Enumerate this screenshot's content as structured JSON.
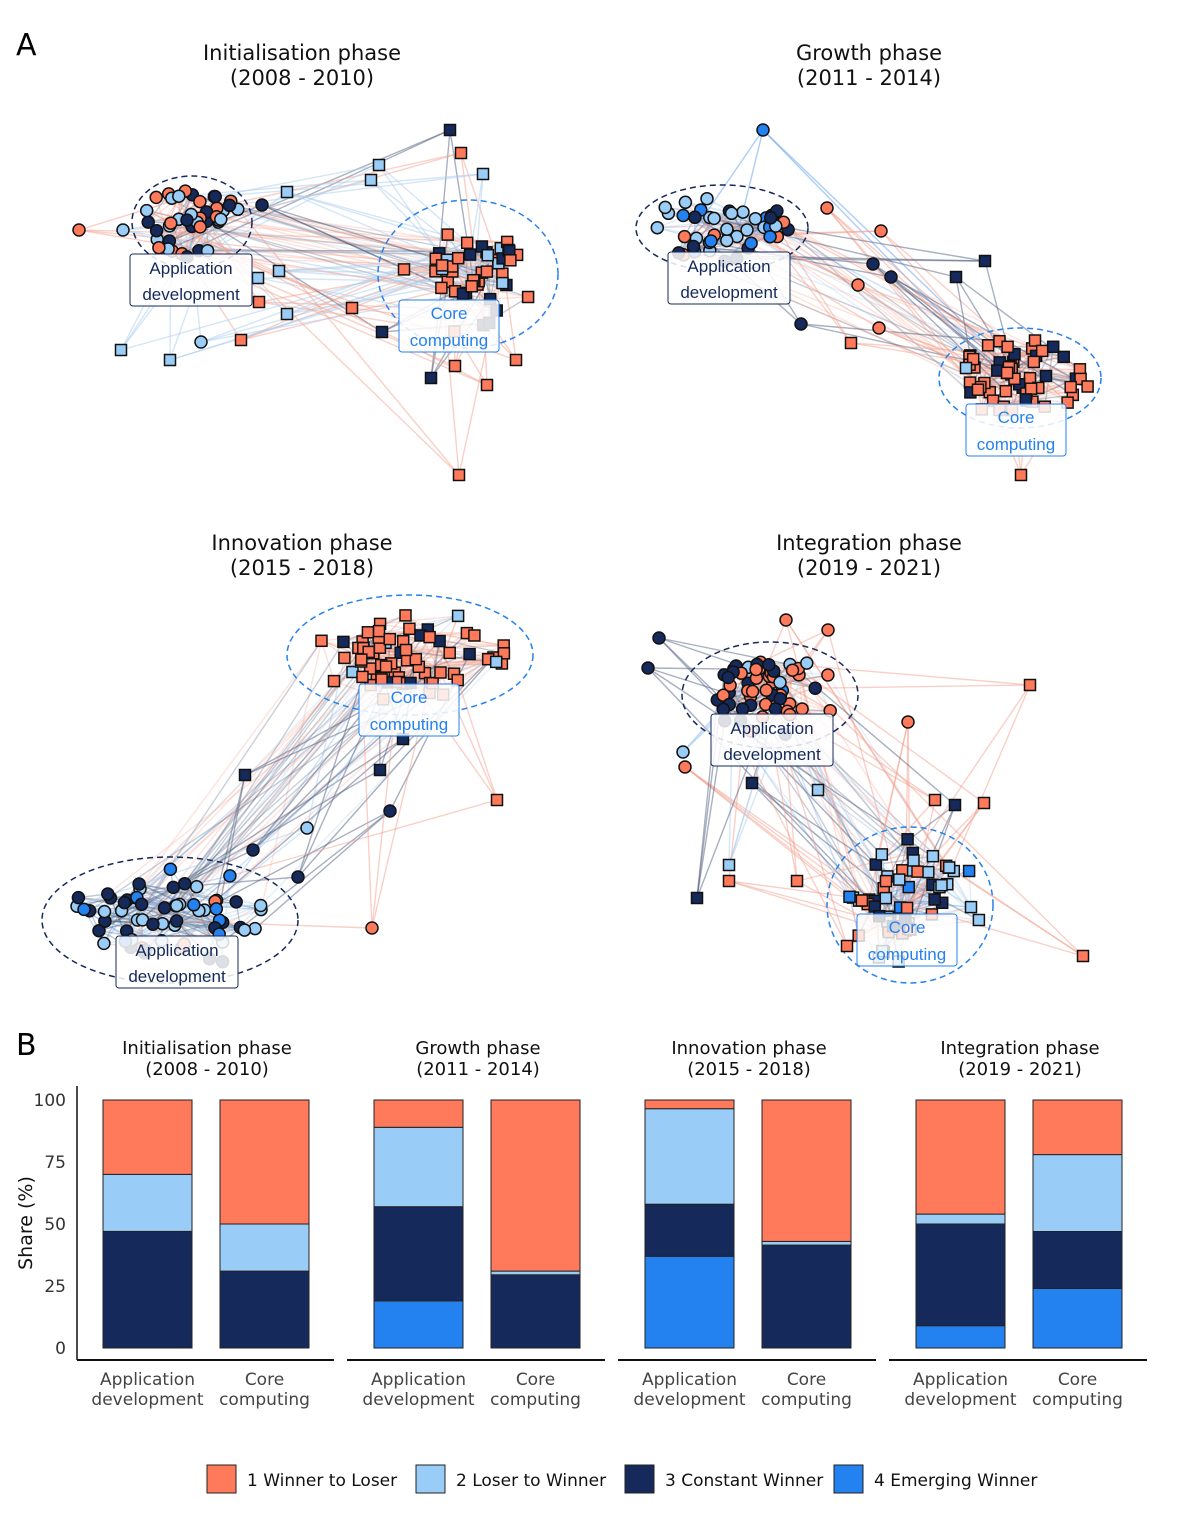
{
  "panel_a_label": "A",
  "panel_b_label": "B",
  "colors": {
    "winner_to_loser": "#FF7A5A",
    "loser_to_winner": "#99CCF7",
    "constant_winner": "#15295A",
    "emerging_winner": "#2481F0",
    "app_cluster": "#15295A",
    "core_cluster": "#2481F0"
  },
  "networks": [
    {
      "title_line1": "Initialisation phase",
      "title_line2": "(2008 - 2010)",
      "cluster_app_line1": "Application",
      "cluster_app_line2": "development",
      "cluster_core_line1": "Core",
      "cluster_core_line2": "computing"
    },
    {
      "title_line1": "Growth phase",
      "title_line2": "(2011 - 2014)",
      "cluster_app_line1": "Application",
      "cluster_app_line2": "development",
      "cluster_core_line1": "Core",
      "cluster_core_line2": "computing"
    },
    {
      "title_line1": "Innovation phase",
      "title_line2": "(2015 - 2018)",
      "cluster_app_line1": "Application",
      "cluster_app_line2": "development",
      "cluster_core_line1": "Core",
      "cluster_core_line2": "computing"
    },
    {
      "title_line1": "Integration phase",
      "title_line2": "(2019 - 2021)",
      "cluster_app_line1": "Application",
      "cluster_app_line2": "development",
      "cluster_core_line1": "Core",
      "cluster_core_line2": "computing"
    }
  ],
  "chart_data": {
    "type": "bar",
    "stacked": true,
    "ylabel": "Share (%)",
    "ylim": [
      0,
      100
    ],
    "yticks": [
      0,
      25,
      50,
      75,
      100
    ],
    "categories_line1": [
      "Application",
      "Core"
    ],
    "categories_line2": [
      "development",
      "computing"
    ],
    "series_names": [
      "1 Winner to Loser",
      "2 Loser to Winner",
      "3 Constant Winner",
      "4 Emerging Winner"
    ],
    "stack_order_bottom_to_top": [
      "4 Emerging Winner",
      "3 Constant Winner",
      "2 Loser to Winner",
      "1 Winner to Loser"
    ],
    "facets": [
      {
        "title_line1": "Initialisation phase",
        "title_line2": "(2008 - 2010)",
        "bars": [
          {
            "category": "Application development",
            "winner_to_loser": 30,
            "loser_to_winner": 23,
            "constant_winner": 47,
            "emerging_winner": 0
          },
          {
            "category": "Core computing",
            "winner_to_loser": 50,
            "loser_to_winner": 19,
            "constant_winner": 31,
            "emerging_winner": 0
          }
        ]
      },
      {
        "title_line1": "Growth phase",
        "title_line2": "(2011 - 2014)",
        "bars": [
          {
            "category": "Application development",
            "winner_to_loser": 11,
            "loser_to_winner": 32,
            "constant_winner": 38,
            "emerging_winner": 19
          },
          {
            "category": "Core computing",
            "winner_to_loser": 69,
            "loser_to_winner": 1.5,
            "constant_winner": 29.5,
            "emerging_winner": 0
          }
        ]
      },
      {
        "title_line1": "Innovation phase",
        "title_line2": "(2015 - 2018)",
        "bars": [
          {
            "category": "Application development",
            "winner_to_loser": 3.5,
            "loser_to_winner": 38.5,
            "constant_winner": 21,
            "emerging_winner": 37
          },
          {
            "category": "Core computing",
            "winner_to_loser": 57,
            "loser_to_winner": 1.5,
            "constant_winner": 41.5,
            "emerging_winner": 0
          }
        ]
      },
      {
        "title_line1": "Integration phase",
        "title_line2": "(2019 - 2021)",
        "bars": [
          {
            "category": "Application development",
            "winner_to_loser": 46,
            "loser_to_winner": 4,
            "constant_winner": 41,
            "emerging_winner": 9
          },
          {
            "category": "Core computing",
            "winner_to_loser": 22,
            "loser_to_winner": 31,
            "constant_winner": 23,
            "emerging_winner": 24
          }
        ]
      }
    ]
  },
  "legend": [
    {
      "label": "1 Winner to Loser",
      "key": "winner_to_loser"
    },
    {
      "label": "2 Loser to Winner",
      "key": "loser_to_winner"
    },
    {
      "label": "3 Constant Winner",
      "key": "constant_winner"
    },
    {
      "label": "4 Emerging Winner",
      "key": "emerging_winner"
    }
  ]
}
